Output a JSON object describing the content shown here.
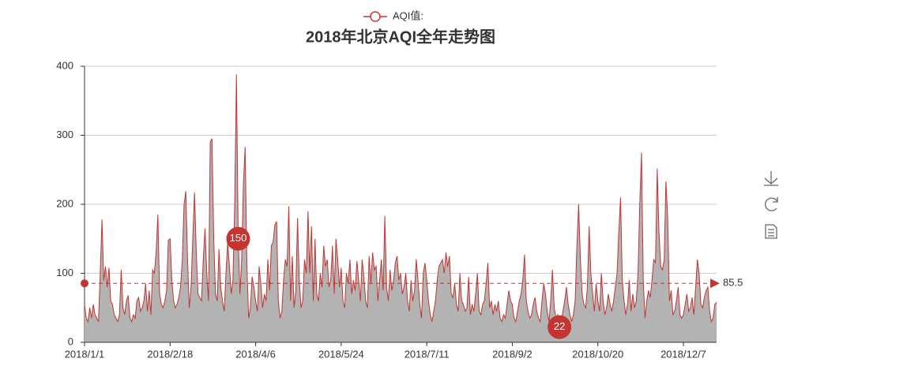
{
  "chart_data": {
    "type": "line",
    "title": "2018年北京AQI全年走势图",
    "categories": [
      "2018/1/1",
      null,
      null,
      null,
      null,
      null,
      null,
      null,
      null,
      null,
      null,
      null,
      null,
      null,
      null,
      null,
      null,
      null,
      null,
      null,
      null,
      null,
      null,
      null,
      null,
      null,
      null,
      null,
      null,
      null,
      null,
      null,
      null,
      null,
      null,
      null,
      null,
      null,
      null,
      null,
      null,
      null,
      null,
      null,
      null,
      null,
      null,
      null,
      null,
      "2018/2/18",
      null,
      null,
      null,
      null,
      null,
      null,
      null,
      null,
      null,
      null,
      null,
      null,
      null,
      null,
      null,
      null,
      null,
      null,
      null,
      null,
      null,
      null,
      null,
      null,
      null,
      null,
      null,
      null,
      null,
      null,
      null,
      null,
      null,
      null,
      null,
      null,
      null,
      null,
      null,
      null,
      null,
      null,
      null,
      null,
      null,
      null,
      null,
      null,
      "2018/4/6",
      null,
      null,
      null,
      null,
      null,
      null,
      null,
      null,
      null,
      null,
      null,
      null,
      null,
      null,
      null,
      null,
      null,
      null,
      null,
      null,
      null,
      null,
      null,
      null,
      null,
      null,
      null,
      null,
      null,
      null,
      null,
      null,
      null,
      null,
      null,
      null,
      null,
      null,
      null,
      null,
      null,
      null,
      null,
      null,
      null,
      null,
      null,
      null,
      "2018/5/24",
      null,
      null,
      null,
      null,
      null,
      null,
      null,
      null,
      null,
      null,
      null,
      null,
      null,
      null,
      null,
      null,
      null,
      null,
      null,
      null,
      null,
      null,
      null,
      null,
      null,
      null,
      null,
      null,
      null,
      null,
      null,
      null,
      null,
      null,
      null,
      null,
      null,
      null,
      null,
      null,
      null,
      null,
      null,
      null,
      null,
      null,
      null,
      null,
      "2018/7/11",
      null,
      null,
      null,
      null,
      null,
      null,
      null,
      null,
      null,
      null,
      null,
      null,
      null,
      null,
      null,
      null,
      null,
      null,
      null,
      null,
      null,
      null,
      null,
      null,
      null,
      null,
      null,
      null,
      null,
      null,
      null,
      null,
      null,
      null,
      null,
      null,
      null,
      null,
      null,
      null,
      null,
      null,
      null,
      null,
      null,
      null,
      null,
      null,
      "2018/9/2",
      null,
      null,
      null,
      null,
      null,
      null,
      null,
      null,
      null,
      null,
      null,
      null,
      null,
      null,
      null,
      null,
      null,
      null,
      null,
      null,
      null,
      null,
      null,
      null,
      null,
      null,
      null,
      null,
      null,
      null,
      null,
      null,
      null,
      null,
      null,
      null,
      null,
      null,
      null,
      null,
      null,
      null,
      null,
      null,
      null,
      null,
      null,
      null,
      "2018/10/20",
      null,
      null,
      null,
      null,
      null,
      null,
      null,
      null,
      null,
      null,
      null,
      null,
      null,
      null,
      null,
      null,
      null,
      null,
      null,
      null,
      null,
      null,
      null,
      null,
      null,
      null,
      null,
      null,
      null,
      null,
      null,
      null,
      null,
      null,
      null,
      null,
      null,
      null,
      null,
      null,
      null,
      null,
      null,
      null,
      null,
      null,
      null,
      null,
      "2018/12/7",
      null,
      null,
      null,
      null,
      null,
      null,
      null,
      null,
      null,
      null,
      null,
      null,
      null,
      null,
      null,
      null,
      null,
      null,
      null
    ],
    "series": [
      {
        "name": "AQI值:",
        "color": "#c23531",
        "area_color": "#b3b3b3",
        "values": [
          55,
          35,
          30,
          50,
          35,
          55,
          40,
          35,
          30,
          100,
          178,
          90,
          110,
          80,
          108,
          60,
          55,
          40,
          35,
          30,
          40,
          105,
          50,
          40,
          60,
          68,
          35,
          30,
          40,
          35,
          60,
          65,
          45,
          50,
          60,
          85,
          45,
          75,
          40,
          105,
          100,
          130,
          185,
          70,
          55,
          50,
          60,
          75,
          148,
          150,
          90,
          60,
          50,
          55,
          65,
          80,
          120,
          200,
          219,
          120,
          50,
          80,
          150,
          217,
          130,
          70,
          65,
          60,
          120,
          165,
          100,
          60,
          290,
          295,
          150,
          70,
          60,
          135,
          80,
          60,
          45,
          100,
          145,
          110,
          70,
          90,
          200,
          388,
          150,
          70,
          120,
          230,
          283,
          110,
          35,
          50,
          95,
          80,
          60,
          45,
          110,
          85,
          50,
          70,
          60,
          120,
          75,
          140,
          145,
          170,
          175,
          60,
          35,
          45,
          90,
          120,
          110,
          197,
          60,
          125,
          50,
          75,
          180,
          90,
          50,
          60,
          120,
          100,
          190,
          100,
          168,
          60,
          150,
          70,
          60,
          100,
          80,
          140,
          110,
          120,
          80,
          90,
          140,
          70,
          150,
          120,
          80,
          108,
          60,
          50,
          100,
          85,
          120,
          70,
          90,
          75,
          118,
          90,
          60,
          120,
          95,
          60,
          50,
          125,
          85,
          130,
          105,
          110,
          60,
          90,
          120,
          75,
          183,
          80,
          60,
          105,
          75,
          90,
          115,
          125,
          90,
          100,
          70,
          80,
          100,
          60,
          45,
          90,
          60,
          75,
          120,
          90,
          55,
          35,
          100,
          115,
          90,
          60,
          40,
          30,
          45,
          60,
          90,
          110,
          115,
          120,
          100,
          130,
          110,
          125,
          70,
          65,
          85,
          55,
          45,
          100,
          60,
          55,
          45,
          50,
          95,
          40,
          55,
          45,
          70,
          100,
          45,
          40,
          55,
          60,
          85,
          115,
          50,
          60,
          40,
          55,
          45,
          60,
          35,
          30,
          40,
          35,
          55,
          75,
          60,
          55,
          35,
          30,
          45,
          60,
          70,
          90,
          127,
          60,
          45,
          35,
          40,
          55,
          65,
          45,
          35,
          30,
          60,
          85,
          70,
          45,
          30,
          60,
          105,
          50,
          35,
          40,
          22,
          30,
          45,
          60,
          80,
          55,
          40,
          30,
          40,
          60,
          140,
          200,
          120,
          70,
          55,
          50,
          80,
          168,
          100,
          70,
          45,
          85,
          60,
          45,
          100,
          60,
          40,
          50,
          70,
          55,
          45,
          60,
          80,
          100,
          160,
          210,
          90,
          60,
          40,
          55,
          90,
          45,
          70,
          50,
          60,
          100,
          200,
          275,
          90,
          35,
          60,
          75,
          65,
          90,
          120,
          115,
          252,
          160,
          110,
          105,
          120,
          233,
          180,
          60,
          75,
          40,
          45,
          60,
          80,
          40,
          35,
          40,
          55,
          70,
          45,
          50,
          65,
          40,
          80,
          120,
          100,
          55,
          50,
          65,
          75,
          80,
          45,
          30,
          35,
          55,
          58
        ]
      }
    ],
    "max_index": 88,
    "min_index": 272,
    "average": 85.5,
    "ylim": [
      0,
      400
    ],
    "yticks": [
      0,
      100,
      200,
      300,
      400
    ],
    "grid": true
  }
}
